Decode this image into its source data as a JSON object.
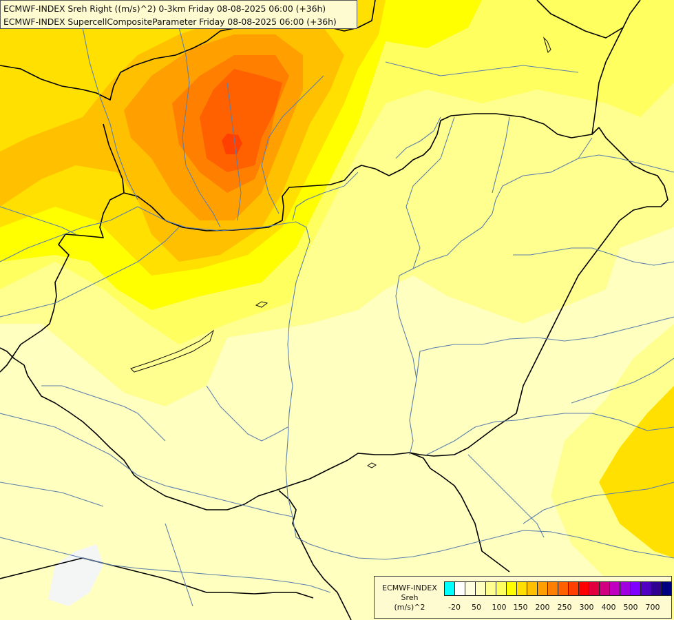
{
  "header": {
    "line1": "ECMWF-INDEX Sreh Right ((m/s)^2) 0-3km Friday 08-08-2025 06:00 (+36h)",
    "line2": "ECMWF-INDEX SupercellCompositeParameter Friday 08-08-2025 06:00 (+36h)"
  },
  "legend": {
    "title_line1": "ECMWF-INDEX",
    "title_line2": "Sreh",
    "title_line3": "(m/s)^2",
    "colors": [
      "#00ffff",
      "#ffffff",
      "#ffffe0",
      "#ffffc0",
      "#ffff90",
      "#ffff60",
      "#ffff00",
      "#ffe000",
      "#ffc000",
      "#ffa000",
      "#ff8000",
      "#ff6000",
      "#ff4000",
      "#ff0000",
      "#e00040",
      "#d00080",
      "#c000c0",
      "#a000e0",
      "#8000ff",
      "#5000c0",
      "#300090",
      "#000080"
    ],
    "ticks": [
      "-20",
      "50",
      "100",
      "150",
      "200",
      "250",
      "300",
      "400",
      "500",
      "700"
    ]
  },
  "colors": {
    "background": "#ffffc0",
    "border_line": "#000000",
    "river_line": "#5c7faa"
  }
}
